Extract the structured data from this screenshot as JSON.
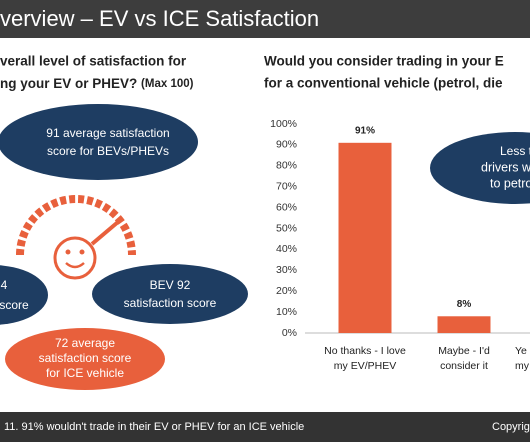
{
  "header": {
    "title": "verview – EV vs ICE Satisfaction"
  },
  "left": {
    "question": [
      "verall level of satisfaction for",
      "ng your EV or PHEV?"
    ],
    "question_note": "(Max 100)",
    "bubbles": [
      {
        "lines": [
          "91 average satisfaction",
          "score for BEVs/PHEVs"
        ]
      },
      {
        "lines": [
          "4",
          "score"
        ]
      },
      {
        "lines": [
          "BEV 92",
          "satisfaction score"
        ]
      },
      {
        "lines": [
          "72 average",
          "satisfaction score",
          "for ICE vehicle"
        ]
      }
    ]
  },
  "right": {
    "question": [
      "Would you consider trading in your E",
      "for a conventional vehicle (petrol, die"
    ],
    "callout": [
      "Less than",
      "drivers wan",
      "to petrol"
    ]
  },
  "chart_data": {
    "type": "bar",
    "categories": [
      [
        "No thanks - I love",
        "my EV/PHEV"
      ],
      [
        "Maybe - I'd",
        "consider it"
      ],
      [
        "Ye",
        "my"
      ]
    ],
    "values": [
      91,
      8,
      null
    ],
    "value_labels": [
      "91%",
      "8%",
      null
    ],
    "color": "#e8603c",
    "ylim": [
      0,
      100
    ],
    "yticks": [
      {
        "value": 0,
        "label": "0%"
      },
      {
        "value": 10,
        "label": "10%"
      },
      {
        "value": 20,
        "label": "20%"
      },
      {
        "value": 30,
        "label": "30%"
      },
      {
        "value": 40,
        "label": "40%"
      },
      {
        "value": 50,
        "label": "50%"
      },
      {
        "value": 60,
        "label": "60%"
      },
      {
        "value": 70,
        "label": "70%"
      },
      {
        "value": 80,
        "label": "80%"
      },
      {
        "value": 90,
        "label": "90%"
      },
      {
        "value": 100,
        "label": "100%"
      }
    ],
    "grid": false
  },
  "footer": {
    "note": "11. 91% wouldn't trade in their EV or PHEV for an ICE vehicle",
    "copyright": "Copyrig"
  }
}
